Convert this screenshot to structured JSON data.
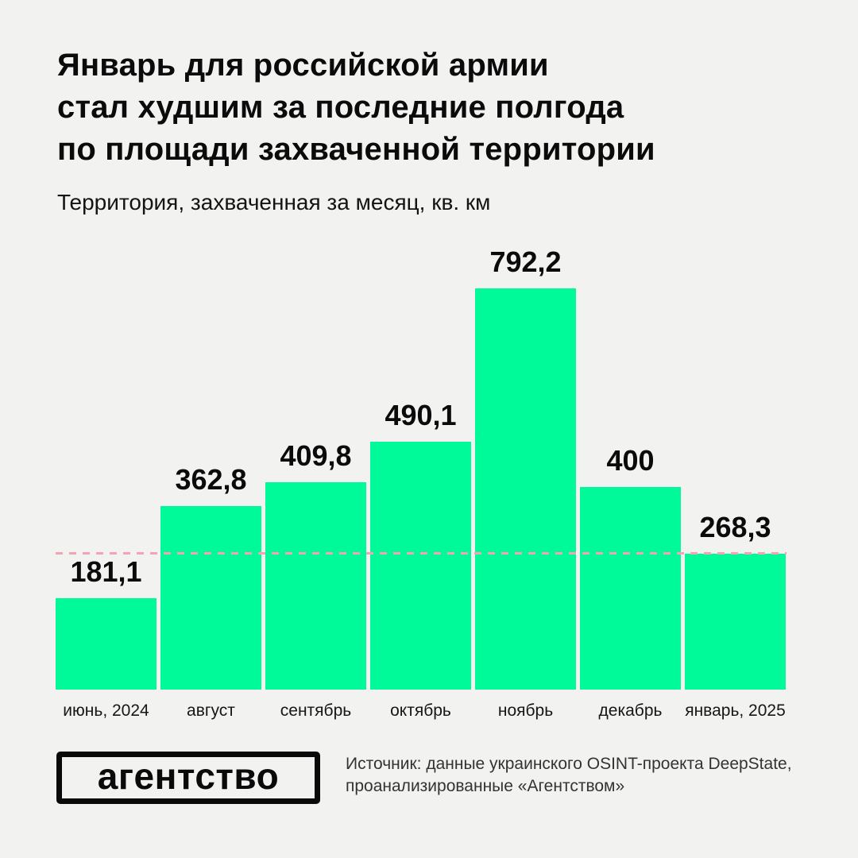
{
  "header": {
    "title": "Январь для российской армии\nстал худшим за последние полгода\nпо площади захваченной территории",
    "subtitle": "Территория, захваченная за месяц, кв. км"
  },
  "chart_data": {
    "type": "bar",
    "title": "Январь для российской армии стал худшим за последние полгода по площади захваченной территории",
    "subtitle": "Территория, захваченная за месяц, кв. км",
    "categories": [
      "июнь, 2024",
      "август",
      "сентябрь",
      "октябрь",
      "ноябрь",
      "декабрь",
      "январь, 2025"
    ],
    "values": [
      181.1,
      362.8,
      409.8,
      490.1,
      792.2,
      400,
      268.3
    ],
    "value_labels": [
      "181,1",
      "362,8",
      "409,8",
      "490,1",
      "792,2",
      "400",
      "268,3"
    ],
    "ylabel": "кв. км",
    "ylim": [
      0,
      800
    ],
    "grid": false,
    "legend": false,
    "bar_color": "#00FA9A",
    "reference_line": {
      "value": 268.3,
      "style": "dashed",
      "color": "#F5A2B2"
    }
  },
  "footer": {
    "logo_text": "агентство",
    "source": "Источник: данные украинского OSINT-проекта DeepState,\nпроанализированные «Агентством»"
  },
  "colors": {
    "background": "#F2F2F1",
    "bar": "#00FA9A",
    "reference_line": "#F5A2B2",
    "text": "#0B0B0B"
  }
}
